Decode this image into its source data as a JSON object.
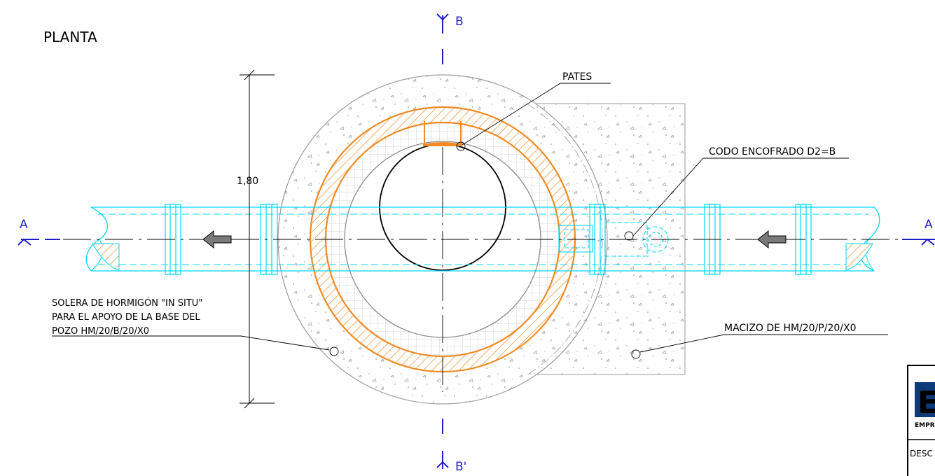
{
  "title": "PLANTA",
  "dimension": "1,80",
  "sections": {
    "a_left": "A",
    "a_right": "A",
    "b_top": "B",
    "b_bottom": "B'"
  },
  "labels": {
    "pates": "PATES",
    "codo": "CODO ENCOFRADO D2=B",
    "solera_line1": "SOLERA DE HORMIGÓN \"IN SITU\"",
    "solera_line2": "PARA EL APOYO DE LA BASE DEL",
    "solera_line3": "POZO HM/20/B/20/X0",
    "macizo": "MACIZO DE HM/20/P/20/X0"
  },
  "title_block": {
    "logo_letter": "E",
    "logo_caption": "EMPR",
    "desc": "DESC"
  },
  "colors": {
    "ring": "#f08a24",
    "pipe": "#00d8ff",
    "section": "#1f1fd0",
    "concrete": "#a0a0a0",
    "logo": "#0d3a78"
  }
}
